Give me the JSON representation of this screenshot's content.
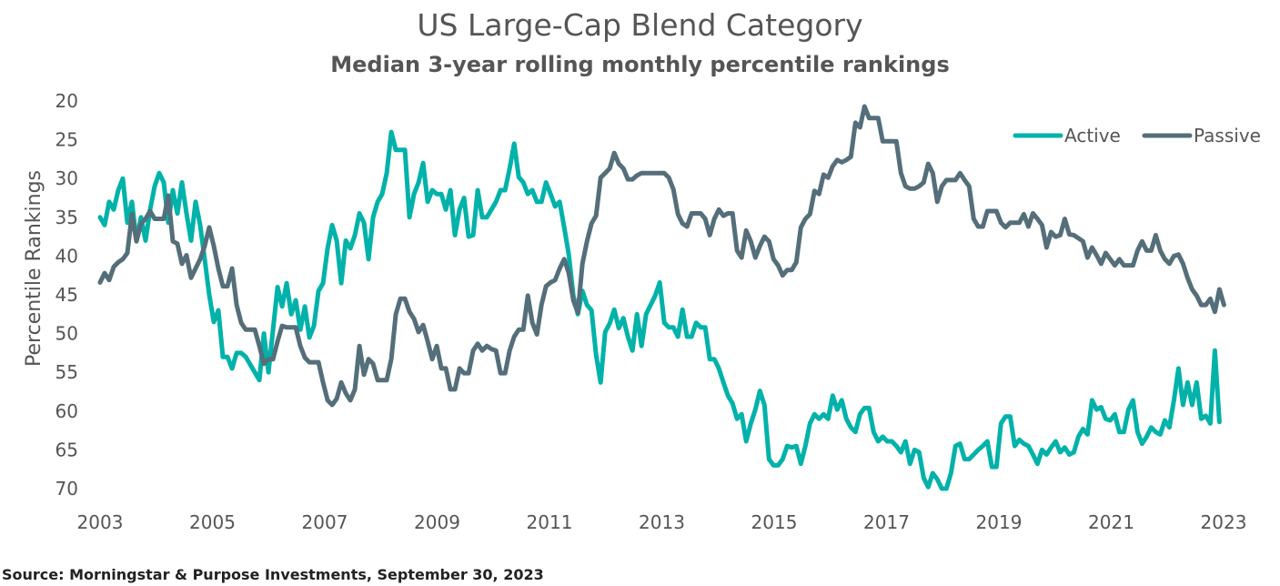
{
  "chart_data": {
    "type": "line",
    "title": "US Large-Cap Blend Category",
    "subtitle": "Median 3-year rolling monthly percentile rankings",
    "xlabel": "",
    "ylabel": "Percentile Rankings",
    "ylim": [
      20,
      70
    ],
    "y_inverted": true,
    "yticks": [
      20,
      25,
      30,
      35,
      40,
      45,
      50,
      55,
      60,
      65,
      70
    ],
    "xticks": [
      "2003",
      "2005",
      "2007",
      "2009",
      "2011",
      "2013",
      "2015",
      "2017",
      "2019",
      "2021",
      "2023"
    ],
    "xlim": [
      2003,
      2023.9
    ],
    "grid": false,
    "legend_position": "top-right",
    "x_start": 2003.0,
    "x_step_years": 0.081,
    "series": [
      {
        "name": "Active",
        "color": "#00b2a9",
        "values": [
          35,
          36,
          33,
          34,
          31.5,
          30,
          35.7,
          33,
          38,
          35,
          38,
          34,
          31,
          29.3,
          30.5,
          35.7,
          31.5,
          34.5,
          30.5,
          34.5,
          38,
          33,
          36,
          40.4,
          45,
          48.5,
          47,
          53,
          53,
          54.5,
          52.5,
          52.5,
          53,
          54,
          55,
          56,
          50,
          55,
          49.5,
          44,
          46.5,
          43.5,
          47.5,
          45.7,
          49.5,
          46.5,
          50.5,
          49,
          44.5,
          43.5,
          39,
          36,
          38,
          43.5,
          38,
          39,
          37.3,
          34.5,
          35.7,
          40.4,
          35,
          33,
          32,
          29.3,
          24,
          26.3,
          26.3,
          26.3,
          35,
          32,
          30.5,
          28,
          33,
          31.5,
          32,
          32,
          34,
          31.5,
          37.3,
          34,
          32.5,
          37.5,
          37.3,
          31.5,
          35,
          35,
          34,
          33,
          31.5,
          31.5,
          28.7,
          25.5,
          29.8,
          30.5,
          32,
          31.5,
          33,
          33,
          30.5,
          32,
          33.6,
          33,
          36.3,
          39.8,
          45.1,
          47.5,
          44.5,
          46.3,
          47,
          52.7,
          56.3,
          49.8,
          48.7,
          46.9,
          49.3,
          48,
          50.4,
          52.2,
          47.5,
          51.6,
          47.5,
          46.3,
          45.1,
          43.4,
          48.6,
          49.2,
          49.2,
          50.4,
          46.9,
          50.4,
          50.4,
          48.6,
          49.2,
          49.2,
          53.3,
          53.3,
          54.5,
          56.3,
          58,
          59,
          61,
          60.4,
          63.9,
          61.6,
          59.8,
          57.4,
          59.2,
          66.2,
          67,
          67,
          66.2,
          64.5,
          64.7,
          64.5,
          66.8,
          64.5,
          61.6,
          60.4,
          61,
          60.4,
          61,
          58,
          59.8,
          58.6,
          61,
          62.1,
          62.7,
          60.4,
          59.6,
          59.6,
          62.7,
          63.9,
          63.3,
          63.9,
          63.9,
          64.5,
          65.3,
          63.9,
          66.8,
          65,
          65.3,
          68.6,
          69.8,
          68,
          68.8,
          70,
          70,
          68,
          64.5,
          64.2,
          66.2,
          66.2,
          65.6,
          65,
          64.5,
          63.9,
          67.2,
          67.2,
          61.6,
          60.7,
          60.7,
          64.5,
          63.7,
          64.2,
          64.5,
          65.6,
          66.8,
          65,
          65.6,
          64.7,
          63.9,
          65.3,
          64.7,
          65.6,
          65.3,
          63.3,
          62.3,
          63,
          58.6,
          59.8,
          59.5,
          61,
          61.2,
          60.4,
          62.7,
          62.7,
          59.8,
          58.6,
          62.7,
          64.2,
          63.3,
          62.1,
          62.7,
          63,
          61.2,
          62.1,
          58.6,
          54.5,
          59.2,
          56.3,
          59.2,
          56.3,
          61,
          60.6,
          61.6,
          52.2,
          61.4
        ]
      },
      {
        "name": "Passive",
        "color": "#546e7a",
        "values": [
          43.4,
          42.2,
          43.1,
          41.4,
          40.8,
          40.4,
          39.6,
          34.6,
          38.1,
          35.8,
          35.2,
          34.2,
          35.2,
          35.2,
          35.2,
          32.2,
          38.1,
          38.4,
          41,
          39.9,
          42.8,
          41.6,
          40.4,
          38.7,
          36.3,
          38.7,
          41.6,
          43.9,
          43.9,
          41.6,
          46.3,
          48.6,
          49.5,
          49.5,
          49.5,
          51.6,
          53.9,
          53.3,
          53.3,
          51,
          49,
          49.2,
          49.2,
          49.2,
          51.6,
          53.1,
          53.7,
          53.7,
          53.7,
          56.3,
          58.6,
          59.2,
          58.4,
          56.3,
          57.7,
          58.6,
          57.2,
          51.6,
          55.3,
          53.3,
          53.9,
          56,
          56,
          56,
          53.3,
          47.5,
          45.5,
          45.5,
          47.2,
          48.1,
          49.8,
          48.9,
          51,
          53.3,
          51.6,
          54.5,
          54.5,
          57.2,
          57.2,
          54.5,
          55.1,
          55.1,
          52.2,
          51.3,
          52.2,
          51.6,
          52,
          52.2,
          55.1,
          55.1,
          52.2,
          50.4,
          49.5,
          49.5,
          45.1,
          48.6,
          50.1,
          46.3,
          43.9,
          43.4,
          43.1,
          41.6,
          40.4,
          42.2,
          45.7,
          47.3,
          41,
          38.1,
          35.8,
          34.8,
          29.9,
          29.3,
          28.7,
          26.7,
          28.1,
          28.7,
          30.1,
          30.1,
          29.6,
          29.3,
          29.3,
          29.3,
          29.3,
          29.3,
          29.3,
          29.9,
          31.4,
          34.6,
          35.8,
          36.2,
          34.5,
          34.5,
          34.5,
          35.2,
          37.3,
          35.2,
          34,
          34.8,
          34.5,
          34.5,
          39.3,
          40.2,
          36.7,
          38.1,
          40.2,
          38.7,
          37.5,
          38.1,
          40.4,
          41.2,
          42.5,
          41.8,
          41.8,
          40.8,
          36.3,
          35.2,
          34.6,
          31.6,
          32,
          29.5,
          29.9,
          28.4,
          27.6,
          27.9,
          27.6,
          27.2,
          22.8,
          23.4,
          20.7,
          22.2,
          22.2,
          22.2,
          25.2,
          25.2,
          25.2,
          25.2,
          29.3,
          31,
          31.3,
          31.3,
          31,
          30.5,
          28.1,
          29.3,
          33,
          31,
          30.2,
          30.2,
          30.2,
          29.3,
          30.2,
          31,
          35.2,
          36.2,
          36.2,
          34.2,
          34.2,
          34.2,
          35.7,
          36.3,
          35.7,
          35.7,
          35.7,
          34.6,
          36.2,
          34.5,
          35.2,
          36,
          38.9,
          36.9,
          37.5,
          37.3,
          35.2,
          37.2,
          37.3,
          37.7,
          38.1,
          40.2,
          38.9,
          39.9,
          41,
          39.6,
          40.4,
          41.2,
          40.4,
          41.2,
          41.2,
          41.2,
          39.3,
          38.1,
          39.3,
          39.3,
          37.3,
          39.3,
          40.4,
          41,
          40,
          39.8,
          41,
          42.8,
          44.3,
          45.1,
          46.3,
          46.3,
          45.5,
          47.2,
          44.3,
          46.3
        ]
      }
    ]
  },
  "footer": {
    "source": "Source: Morningstar & Purpose Investments, September 30, 2023"
  }
}
